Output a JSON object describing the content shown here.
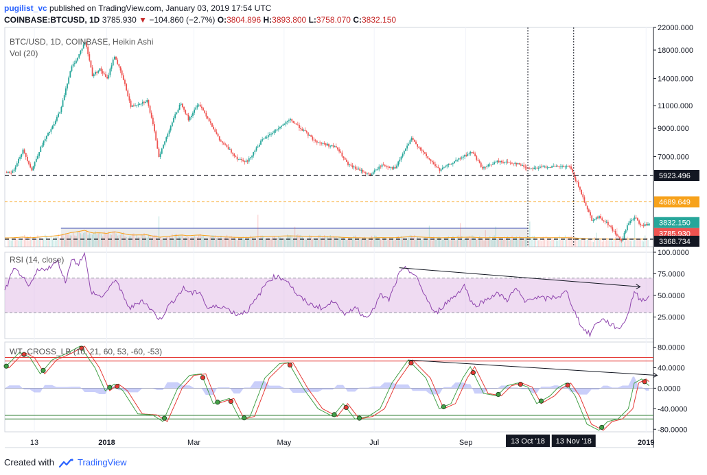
{
  "header": {
    "author": "pugilist_vc",
    "published_text": "published on TradingView.com, January 03, 2019 17:54 UTC",
    "symbol": "COINBASE:BTCUSD, 1D",
    "last": "3785.930",
    "down_arrow": "▼",
    "change": "−104.860 (−2.7%)",
    "o_label": "O:",
    "o_value": "3804.896",
    "h_label": "H:",
    "h_value": "3893.800",
    "l_label": "L:",
    "l_value": "3758.070",
    "c_label": "C:",
    "c_value": "3832.150"
  },
  "footer": {
    "created_with": "Created with",
    "brand": "TradingView"
  },
  "chart_data": {
    "type": "candlestick",
    "main_pane": {
      "title": "BTC/USD, 1D, COINBASE, Heikin Ashi",
      "volume_label": "Vol (20)",
      "scale": "log",
      "ylim": [
        3150,
        22000
      ],
      "y_ticks": [
        {
          "value": 22000,
          "label": "22000.000"
        },
        {
          "value": 18000,
          "label": "18000.000"
        },
        {
          "value": 14000,
          "label": "14000.000"
        },
        {
          "value": 11000,
          "label": "11000.000"
        },
        {
          "value": 9000,
          "label": "9000.000"
        },
        {
          "value": 7000,
          "label": "7000.000"
        }
      ],
      "price_points": [
        {
          "date": "2017-10-29",
          "price": 6100
        },
        {
          "date": "2017-11-05",
          "price": 7400
        },
        {
          "date": "2017-11-11",
          "price": 6200
        },
        {
          "date": "2017-11-18",
          "price": 7800
        },
        {
          "date": "2017-11-26",
          "price": 9300
        },
        {
          "date": "2017-12-01",
          "price": 10800
        },
        {
          "date": "2017-12-08",
          "price": 15500
        },
        {
          "date": "2017-12-12",
          "price": 16800
        },
        {
          "date": "2017-12-17",
          "price": 19400
        },
        {
          "date": "2017-12-22",
          "price": 14400
        },
        {
          "date": "2017-12-27",
          "price": 15200
        },
        {
          "date": "2018-01-01",
          "price": 13900
        },
        {
          "date": "2018-01-06",
          "price": 17100
        },
        {
          "date": "2018-01-12",
          "price": 13800
        },
        {
          "date": "2018-01-17",
          "price": 10900
        },
        {
          "date": "2018-01-28",
          "price": 11500
        },
        {
          "date": "2018-02-05",
          "price": 7000
        },
        {
          "date": "2018-02-09",
          "price": 8000
        },
        {
          "date": "2018-02-20",
          "price": 11300
        },
        {
          "date": "2018-02-25",
          "price": 9700
        },
        {
          "date": "2018-03-04",
          "price": 11200
        },
        {
          "date": "2018-03-18",
          "price": 8100
        },
        {
          "date": "2018-03-30",
          "price": 6900
        },
        {
          "date": "2018-04-06",
          "price": 6700
        },
        {
          "date": "2018-04-15",
          "price": 8000
        },
        {
          "date": "2018-05-05",
          "price": 9700
        },
        {
          "date": "2018-05-22",
          "price": 8000
        },
        {
          "date": "2018-06-05",
          "price": 7600
        },
        {
          "date": "2018-06-13",
          "price": 6500
        },
        {
          "date": "2018-06-28",
          "price": 5950
        },
        {
          "date": "2018-07-06",
          "price": 6500
        },
        {
          "date": "2018-07-15",
          "price": 6300
        },
        {
          "date": "2018-07-26",
          "price": 8200
        },
        {
          "date": "2018-08-05",
          "price": 7000
        },
        {
          "date": "2018-08-14",
          "price": 6200
        },
        {
          "date": "2018-08-28",
          "price": 6900
        },
        {
          "date": "2018-09-05",
          "price": 7300
        },
        {
          "date": "2018-09-12",
          "price": 6300
        },
        {
          "date": "2018-09-22",
          "price": 6700
        },
        {
          "date": "2018-10-05",
          "price": 6600
        },
        {
          "date": "2018-10-13",
          "price": 6300
        },
        {
          "date": "2018-10-25",
          "price": 6400
        },
        {
          "date": "2018-11-10",
          "price": 6400
        },
        {
          "date": "2018-11-14",
          "price": 5700
        },
        {
          "date": "2018-11-20",
          "price": 4700
        },
        {
          "date": "2018-11-25",
          "price": 4000
        },
        {
          "date": "2018-11-30",
          "price": 4100
        },
        {
          "date": "2018-12-05",
          "price": 3900
        },
        {
          "date": "2018-12-15",
          "price": 3300
        },
        {
          "date": "2018-12-20",
          "price": 3900
        },
        {
          "date": "2018-12-24",
          "price": 4100
        },
        {
          "date": "2018-12-28",
          "price": 3800
        },
        {
          "date": "2019-01-03",
          "price": 3832
        }
      ],
      "price_labels": [
        {
          "price": 5923.496,
          "label": "5923.496",
          "color": "#131722"
        },
        {
          "price": 4689.649,
          "label": "4689.649",
          "color": "#f7a21b"
        },
        {
          "price": 3832.15,
          "label": "3832.150",
          "color": "#26a69a"
        },
        {
          "price": 3785.93,
          "label": "3785.930",
          "color": "#ef5350"
        },
        {
          "price": 3368.734,
          "label": "3368.734",
          "color": "#131722"
        }
      ],
      "horizontal_lines": [
        {
          "price": 5923.496,
          "style": "dashed",
          "color": "#131722"
        },
        {
          "price": 4689.649,
          "style": "dashed",
          "color": "#f7a21b"
        },
        {
          "price": 3368.734,
          "style": "dashed",
          "color": "#131722"
        }
      ],
      "vertical_lines": [
        {
          "date": "2018-10-13",
          "style": "dotted"
        },
        {
          "date": "2018-11-13",
          "style": "dotted"
        }
      ],
      "volume_profile_start": "2017-12-01",
      "volume_profile_end": "2018-10-13"
    },
    "rsi_pane": {
      "title": "RSI (14, close)",
      "ylim": [
        0,
        100
      ],
      "y_ticks": [
        {
          "value": 100,
          "label": "100.0000"
        },
        {
          "value": 75,
          "label": "75.0000"
        },
        {
          "value": 50,
          "label": "50.0000"
        },
        {
          "value": 25,
          "label": "25.0000"
        }
      ],
      "band": [
        30,
        70
      ],
      "points": [
        {
          "date": "2017-10-24",
          "value": 55
        },
        {
          "date": "2017-10-30",
          "value": 80
        },
        {
          "date": "2017-11-04",
          "value": 75
        },
        {
          "date": "2017-11-09",
          "value": 58
        },
        {
          "date": "2017-11-15",
          "value": 78
        },
        {
          "date": "2017-11-25",
          "value": 84
        },
        {
          "date": "2017-11-29",
          "value": 90
        },
        {
          "date": "2017-12-04",
          "value": 65
        },
        {
          "date": "2017-12-08",
          "value": 92
        },
        {
          "date": "2017-12-13",
          "value": 87
        },
        {
          "date": "2017-12-17",
          "value": 100
        },
        {
          "date": "2017-12-21",
          "value": 55
        },
        {
          "date": "2017-12-28",
          "value": 48
        },
        {
          "date": "2018-01-03",
          "value": 58
        },
        {
          "date": "2018-01-07",
          "value": 70
        },
        {
          "date": "2018-01-13",
          "value": 45
        },
        {
          "date": "2018-01-17",
          "value": 35
        },
        {
          "date": "2018-01-25",
          "value": 45
        },
        {
          "date": "2018-02-06",
          "value": 22
        },
        {
          "date": "2018-02-12",
          "value": 38
        },
        {
          "date": "2018-02-22",
          "value": 58
        },
        {
          "date": "2018-02-28",
          "value": 52
        },
        {
          "date": "2018-03-05",
          "value": 55
        },
        {
          "date": "2018-03-10",
          "value": 35
        },
        {
          "date": "2018-03-20",
          "value": 38
        },
        {
          "date": "2018-03-30",
          "value": 28
        },
        {
          "date": "2018-04-06",
          "value": 32
        },
        {
          "date": "2018-04-12",
          "value": 45
        },
        {
          "date": "2018-04-20",
          "value": 67
        },
        {
          "date": "2018-04-25",
          "value": 72
        },
        {
          "date": "2018-05-03",
          "value": 68
        },
        {
          "date": "2018-05-10",
          "value": 50
        },
        {
          "date": "2018-05-18",
          "value": 40
        },
        {
          "date": "2018-05-28",
          "value": 35
        },
        {
          "date": "2018-06-05",
          "value": 45
        },
        {
          "date": "2018-06-11",
          "value": 25
        },
        {
          "date": "2018-06-18",
          "value": 38
        },
        {
          "date": "2018-06-24",
          "value": 25
        },
        {
          "date": "2018-06-30",
          "value": 32
        },
        {
          "date": "2018-07-05",
          "value": 50
        },
        {
          "date": "2018-07-11",
          "value": 45
        },
        {
          "date": "2018-07-18",
          "value": 75
        },
        {
          "date": "2018-07-23",
          "value": 82
        },
        {
          "date": "2018-07-29",
          "value": 72
        },
        {
          "date": "2018-08-06",
          "value": 45
        },
        {
          "date": "2018-08-11",
          "value": 28
        },
        {
          "date": "2018-08-19",
          "value": 42
        },
        {
          "date": "2018-08-25",
          "value": 50
        },
        {
          "date": "2018-08-31",
          "value": 62
        },
        {
          "date": "2018-09-06",
          "value": 38
        },
        {
          "date": "2018-09-12",
          "value": 42
        },
        {
          "date": "2018-09-17",
          "value": 48
        },
        {
          "date": "2018-09-23",
          "value": 52
        },
        {
          "date": "2018-09-29",
          "value": 45
        },
        {
          "date": "2018-10-05",
          "value": 58
        },
        {
          "date": "2018-10-11",
          "value": 42
        },
        {
          "date": "2018-10-16",
          "value": 48
        },
        {
          "date": "2018-10-25",
          "value": 46
        },
        {
          "date": "2018-11-05",
          "value": 50
        },
        {
          "date": "2018-11-08",
          "value": 55
        },
        {
          "date": "2018-11-14",
          "value": 30
        },
        {
          "date": "2018-11-19",
          "value": 12
        },
        {
          "date": "2018-11-24",
          "value": 5
        },
        {
          "date": "2018-11-29",
          "value": 20
        },
        {
          "date": "2018-12-04",
          "value": 22
        },
        {
          "date": "2018-12-09",
          "value": 15
        },
        {
          "date": "2018-12-15",
          "value": 12
        },
        {
          "date": "2018-12-20",
          "value": 30
        },
        {
          "date": "2018-12-24",
          "value": 55
        },
        {
          "date": "2018-12-28",
          "value": 45
        },
        {
          "date": "2019-01-03",
          "value": 48
        }
      ],
      "trendline": {
        "from": {
          "date": "2018-07-18",
          "value": 82
        },
        "to": {
          "date": "2018-12-28",
          "value": 60
        }
      }
    },
    "wt_pane": {
      "title": "WT_CROSS_LB (10, 21, 60, 53, -60, -53)",
      "ylim": [
        -85,
        90
      ],
      "y_ticks": [
        {
          "value": 80,
          "label": "80.0000"
        },
        {
          "value": 40,
          "label": "40.0000"
        },
        {
          "value": 0,
          "label": "0.0000"
        },
        {
          "value": -40,
          "label": "-40.0000"
        },
        {
          "value": -80,
          "label": "-80.0000"
        }
      ],
      "levels_red": [
        60,
        53
      ],
      "levels_green": [
        -60,
        -53
      ],
      "wt1": [
        {
          "date": "2017-10-24",
          "value": 40
        },
        {
          "date": "2017-11-03",
          "value": 70
        },
        {
          "date": "2017-11-10",
          "value": 60
        },
        {
          "date": "2017-11-17",
          "value": 28
        },
        {
          "date": "2017-11-25",
          "value": 55
        },
        {
          "date": "2017-12-05",
          "value": 68
        },
        {
          "date": "2017-12-14",
          "value": 82
        },
        {
          "date": "2017-12-24",
          "value": 40
        },
        {
          "date": "2017-12-31",
          "value": -5
        },
        {
          "date": "2018-01-06",
          "value": 8
        },
        {
          "date": "2018-01-12",
          "value": -5
        },
        {
          "date": "2018-01-22",
          "value": -50
        },
        {
          "date": "2018-02-01",
          "value": -52
        },
        {
          "date": "2018-02-08",
          "value": -65
        },
        {
          "date": "2018-02-18",
          "value": 0
        },
        {
          "date": "2018-02-26",
          "value": 25
        },
        {
          "date": "2018-03-06",
          "value": 28
        },
        {
          "date": "2018-03-14",
          "value": -30
        },
        {
          "date": "2018-03-25",
          "value": -20
        },
        {
          "date": "2018-04-01",
          "value": -60
        },
        {
          "date": "2018-04-08",
          "value": -55
        },
        {
          "date": "2018-04-18",
          "value": 20
        },
        {
          "date": "2018-04-28",
          "value": 48
        },
        {
          "date": "2018-05-04",
          "value": 50
        },
        {
          "date": "2018-05-14",
          "value": 0
        },
        {
          "date": "2018-05-24",
          "value": -40
        },
        {
          "date": "2018-06-03",
          "value": -55
        },
        {
          "date": "2018-06-10",
          "value": -30
        },
        {
          "date": "2018-06-18",
          "value": -60
        },
        {
          "date": "2018-06-27",
          "value": -55
        },
        {
          "date": "2018-07-05",
          "value": -40
        },
        {
          "date": "2018-07-13",
          "value": 10
        },
        {
          "date": "2018-07-24",
          "value": 55
        },
        {
          "date": "2018-08-05",
          "value": 20
        },
        {
          "date": "2018-08-14",
          "value": -40
        },
        {
          "date": "2018-08-22",
          "value": -30
        },
        {
          "date": "2018-08-30",
          "value": 20
        },
        {
          "date": "2018-09-04",
          "value": 42
        },
        {
          "date": "2018-09-13",
          "value": -10
        },
        {
          "date": "2018-09-22",
          "value": -15
        },
        {
          "date": "2018-09-29",
          "value": 5
        },
        {
          "date": "2018-10-06",
          "value": 10
        },
        {
          "date": "2018-10-13",
          "value": 2
        },
        {
          "date": "2018-10-19",
          "value": -30
        },
        {
          "date": "2018-10-28",
          "value": -15
        },
        {
          "date": "2018-11-02",
          "value": 0
        },
        {
          "date": "2018-11-08",
          "value": 10
        },
        {
          "date": "2018-11-14",
          "value": -15
        },
        {
          "date": "2018-11-22",
          "value": -70
        },
        {
          "date": "2018-11-30",
          "value": -82
        },
        {
          "date": "2018-12-06",
          "value": -65
        },
        {
          "date": "2018-12-13",
          "value": -60
        },
        {
          "date": "2018-12-20",
          "value": -40
        },
        {
          "date": "2018-12-24",
          "value": 10
        },
        {
          "date": "2018-12-29",
          "value": 18
        },
        {
          "date": "2019-01-03",
          "value": 5
        }
      ],
      "trendline": {
        "from": {
          "date": "2018-07-24",
          "value": 55
        },
        "to": {
          "date": "2019-01-03",
          "value": 25
        }
      }
    },
    "x_axis": {
      "start": "2017-10-24",
      "end": "2019-01-06",
      "ticks": [
        {
          "date": "2017-11-13",
          "label": "13"
        },
        {
          "date": "2018-01-01",
          "label": "2018"
        },
        {
          "date": "2018-03-01",
          "label": "Mar"
        },
        {
          "date": "2018-05-01",
          "label": "May"
        },
        {
          "date": "2018-07-01",
          "label": "Jul"
        },
        {
          "date": "2018-09-01",
          "label": "Sep"
        },
        {
          "date": "2019-01-01",
          "label": "2019"
        }
      ],
      "highlight_labels": [
        {
          "date": "2018-10-13",
          "label": "13 Oct '18"
        },
        {
          "date": "2018-11-13",
          "label": "13 Nov '18"
        }
      ]
    },
    "colors": {
      "up": "#26a69a",
      "down": "#ef5350",
      "rsi": "#8e44ad",
      "rsi_band": "#e1bee7",
      "wt_green": "#2e7d32",
      "wt_red": "#e53935",
      "wt_hist": "#9fa8f5",
      "volume_profile": "#a6a6a6",
      "orange": "#f7a21b"
    }
  }
}
